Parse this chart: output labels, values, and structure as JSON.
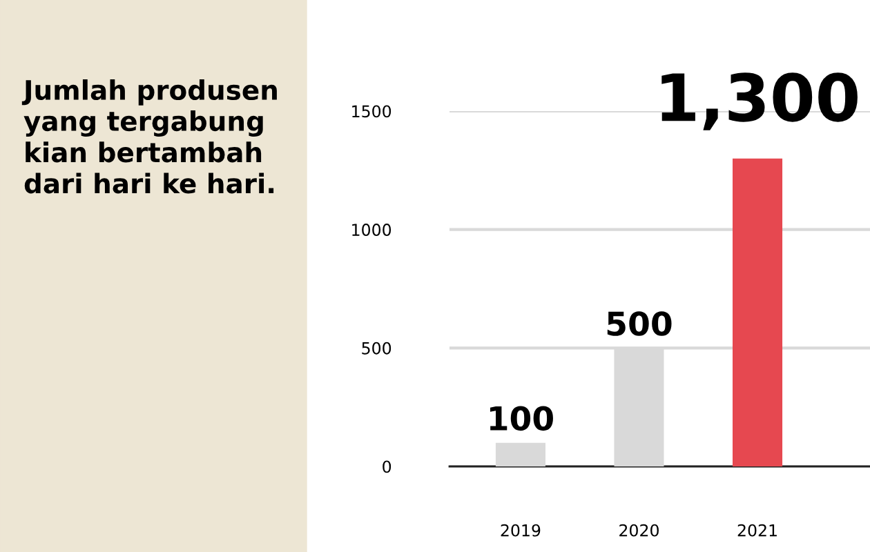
{
  "chart_data": {
    "type": "bar",
    "title": "Jumlah produsen yang tergabung kian bertambah dari hari ke hari.",
    "categories": [
      "2019",
      "2020",
      "2021"
    ],
    "values": [
      100,
      500,
      1300
    ],
    "colors": [
      "#d9d9d9",
      "#d9d9d9",
      "#e64850"
    ],
    "value_labels": [
      "100",
      "500",
      "1,300"
    ],
    "ylim": [
      0,
      1500
    ],
    "yticks": [
      0,
      500,
      1000,
      1500
    ],
    "grid": "y"
  }
}
